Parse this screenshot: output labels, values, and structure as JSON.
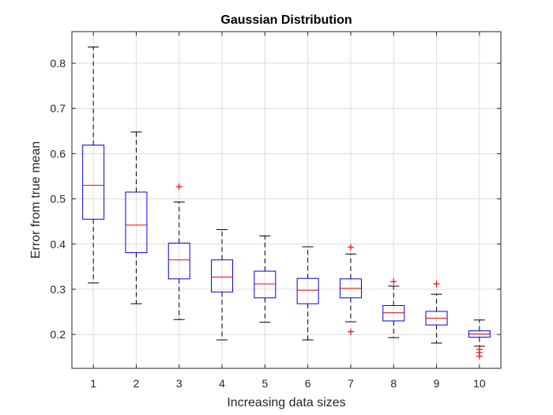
{
  "chart_data": {
    "type": "boxplot",
    "title": "Gaussian Distribution",
    "xlabel": "Increasing data sizes",
    "ylabel": "Error from true mean",
    "categories": [
      "1",
      "2",
      "3",
      "4",
      "5",
      "6",
      "7",
      "8",
      "9",
      "10"
    ],
    "ylim": [
      0.125,
      0.87
    ],
    "yticks": [
      "0.2",
      "0.3",
      "0.4",
      "0.5",
      "0.6",
      "0.7",
      "0.8"
    ],
    "xlim": [
      0.5,
      10.5
    ],
    "grid": true,
    "boxes": [
      {
        "category": "1",
        "whisker_low": 0.314,
        "q1": 0.455,
        "median": 0.53,
        "q3": 0.619,
        "whisker_high": 0.836,
        "outliers": []
      },
      {
        "category": "2",
        "whisker_low": 0.268,
        "q1": 0.381,
        "median": 0.442,
        "q3": 0.515,
        "whisker_high": 0.648,
        "outliers": []
      },
      {
        "category": "3",
        "whisker_low": 0.233,
        "q1": 0.323,
        "median": 0.365,
        "q3": 0.402,
        "whisker_high": 0.493,
        "outliers": [
          0.527
        ]
      },
      {
        "category": "4",
        "whisker_low": 0.188,
        "q1": 0.294,
        "median": 0.327,
        "q3": 0.365,
        "whisker_high": 0.432,
        "outliers": []
      },
      {
        "category": "5",
        "whisker_low": 0.227,
        "q1": 0.281,
        "median": 0.312,
        "q3": 0.34,
        "whisker_high": 0.418,
        "outliers": []
      },
      {
        "category": "6",
        "whisker_low": 0.188,
        "q1": 0.268,
        "median": 0.298,
        "q3": 0.324,
        "whisker_high": 0.394,
        "outliers": []
      },
      {
        "category": "7",
        "whisker_low": 0.228,
        "q1": 0.281,
        "median": 0.302,
        "q3": 0.323,
        "whisker_high": 0.378,
        "outliers": [
          0.393,
          0.206
        ]
      },
      {
        "category": "8",
        "whisker_low": 0.193,
        "q1": 0.23,
        "median": 0.248,
        "q3": 0.264,
        "whisker_high": 0.307,
        "outliers": [
          0.317
        ]
      },
      {
        "category": "9",
        "whisker_low": 0.181,
        "q1": 0.221,
        "median": 0.236,
        "q3": 0.251,
        "whisker_high": 0.289,
        "outliers": [
          0.312
        ]
      },
      {
        "category": "10",
        "whisker_low": 0.174,
        "q1": 0.194,
        "median": 0.201,
        "q3": 0.208,
        "whisker_high": 0.232,
        "outliers": [
          0.167,
          0.16,
          0.152
        ]
      }
    ],
    "colors": {
      "box": "#0000ff",
      "median": "#ff0000",
      "whisker": "#000000",
      "outlier": "#ff0000",
      "grid": "#dcdcdc",
      "axis": "#262626"
    }
  }
}
